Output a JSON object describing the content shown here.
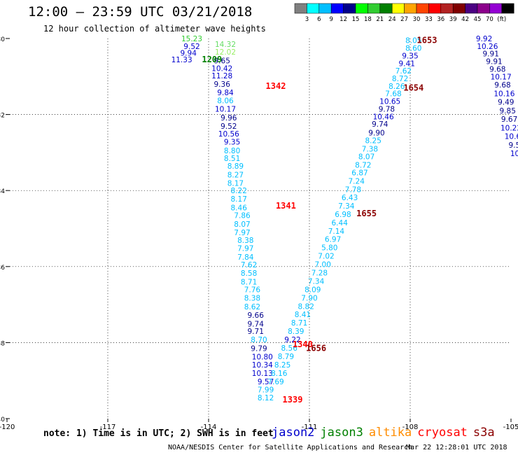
{
  "header": {
    "title": "12:00 – 23:59 UTC 03/21/2018",
    "subtitle": "12 hour collection of altimeter wave heights"
  },
  "colorbar": {
    "colors": [
      "#808080",
      "#00ffff",
      "#00bfff",
      "#0000ff",
      "#00008b",
      "#00ff00",
      "#32cd32",
      "#008000",
      "#ffff00",
      "#ffa500",
      "#ff4500",
      "#ff0000",
      "#b22222",
      "#800000",
      "#4b0082",
      "#8b008b",
      "#9400d3",
      "#000000"
    ],
    "labels": [
      "3",
      "6",
      "9",
      "12",
      "15",
      "18",
      "21",
      "24",
      "27",
      "30",
      "33",
      "36",
      "39",
      "42",
      "45",
      "70",
      "(ft)"
    ]
  },
  "footer": {
    "note": "note: 1) Time is in UTC; 2) SWH is in feet",
    "credit": "NOAA/NESDIS Center for Satellite Applications and Research",
    "timestamp": "Mar 22 12:28:01 UTC 2018"
  },
  "legend": [
    {
      "name": "jason2",
      "color": "#0000cd"
    },
    {
      "name": "jason3",
      "color": "#008000"
    },
    {
      "name": "altika",
      "color": "#ff8c00"
    },
    {
      "name": "cryosat",
      "color": "#ff0000"
    },
    {
      "name": "s3a",
      "color": "#8b0000"
    }
  ],
  "chart_data": {
    "type": "scatter",
    "xlim": [
      -120,
      -105
    ],
    "ylim": [
      -40,
      -30
    ],
    "x_ticks": [
      "-120",
      "-117",
      "-114",
      "-111",
      "-108",
      "-105"
    ],
    "y_ticks": [
      "-30",
      "-32",
      "-34",
      "-36",
      "-38",
      "-40"
    ],
    "series": [
      {
        "name": "jason3",
        "color": "#0000cd",
        "points": [
          {
            "x": -114.5,
            "y": -30.0,
            "v": "15.23",
            "c": "#32cd32"
          },
          {
            "x": -114.5,
            "y": -30.2,
            "v": "9.52",
            "c": "#0000cd"
          },
          {
            "x": -114.6,
            "y": -30.38,
            "v": "9.94",
            "c": "#0000cd"
          },
          {
            "x": -114.8,
            "y": -30.55,
            "v": "11.33",
            "c": "#0000cd"
          }
        ]
      },
      {
        "name": "cryosat",
        "color": "#0000cd",
        "points": [
          {
            "x": -113.5,
            "y": -30.15,
            "v": "14.32",
            "c": "#66dd66"
          },
          {
            "x": -113.5,
            "y": -30.35,
            "v": "12.02",
            "c": "#99ee66"
          },
          {
            "x": -113.6,
            "y": -30.58,
            "v": "9.65",
            "c": "#00008b"
          },
          {
            "x": -113.6,
            "y": -30.78,
            "v": "10.42",
            "c": "#0000cd"
          },
          {
            "x": -113.6,
            "y": -30.98,
            "v": "11.28",
            "c": "#0000cd"
          },
          {
            "x": -113.6,
            "y": -31.2,
            "v": "9.36",
            "c": "#00008b"
          },
          {
            "x": -113.5,
            "y": -31.42,
            "v": "9.84",
            "c": "#0000cd"
          },
          {
            "x": -113.5,
            "y": -31.63,
            "v": "8.06",
            "c": "#00bfff"
          },
          {
            "x": -113.5,
            "y": -31.85,
            "v": "10.17",
            "c": "#0000cd"
          },
          {
            "x": -113.4,
            "y": -32.08,
            "v": "9.96",
            "c": "#00008b"
          },
          {
            "x": -113.4,
            "y": -32.3,
            "v": "9.52",
            "c": "#00008b"
          },
          {
            "x": -113.4,
            "y": -32.5,
            "v": "10.56",
            "c": "#0000cd"
          },
          {
            "x": -113.3,
            "y": -32.72,
            "v": "9.35",
            "c": "#0000cd"
          },
          {
            "x": -113.3,
            "y": -32.95,
            "v": "8.80",
            "c": "#00bfff"
          },
          {
            "x": -113.3,
            "y": -33.15,
            "v": "8.51",
            "c": "#00bfff"
          },
          {
            "x": -113.2,
            "y": -33.35,
            "v": "8.89",
            "c": "#00bfff"
          },
          {
            "x": -113.2,
            "y": -33.58,
            "v": "8.27",
            "c": "#00bfff"
          },
          {
            "x": -113.2,
            "y": -33.8,
            "v": "8.17",
            "c": "#00bfff"
          },
          {
            "x": -113.1,
            "y": -34.0,
            "v": "8.22",
            "c": "#00bfff"
          },
          {
            "x": -113.1,
            "y": -34.22,
            "v": "8.17",
            "c": "#00bfff"
          },
          {
            "x": -113.1,
            "y": -34.45,
            "v": "8.46",
            "c": "#00bfff"
          },
          {
            "x": -113.0,
            "y": -34.65,
            "v": "7.86",
            "c": "#00bfff"
          },
          {
            "x": -113.0,
            "y": -34.88,
            "v": "8.07",
            "c": "#00bfff"
          },
          {
            "x": -113.0,
            "y": -35.1,
            "v": "7.97",
            "c": "#00bfff"
          },
          {
            "x": -112.9,
            "y": -35.3,
            "v": "8.38",
            "c": "#00bfff"
          },
          {
            "x": -112.9,
            "y": -35.52,
            "v": "7.97",
            "c": "#00bfff"
          },
          {
            "x": -112.9,
            "y": -35.75,
            "v": "7.84",
            "c": "#00bfff"
          },
          {
            "x": -112.8,
            "y": -35.95,
            "v": "7.62",
            "c": "#00bfff"
          },
          {
            "x": -112.8,
            "y": -36.17,
            "v": "8.58",
            "c": "#00bfff"
          },
          {
            "x": -112.8,
            "y": -36.4,
            "v": "8.71",
            "c": "#00bfff"
          },
          {
            "x": -112.7,
            "y": -36.6,
            "v": "7.76",
            "c": "#00bfff"
          },
          {
            "x": -112.7,
            "y": -36.82,
            "v": "8.38",
            "c": "#00bfff"
          },
          {
            "x": -112.7,
            "y": -37.05,
            "v": "8.62",
            "c": "#00bfff"
          },
          {
            "x": -112.6,
            "y": -37.27,
            "v": "9.66",
            "c": "#00008b"
          },
          {
            "x": -112.6,
            "y": -37.5,
            "v": "9.74",
            "c": "#00008b"
          },
          {
            "x": -112.6,
            "y": -37.7,
            "v": "9.71",
            "c": "#00008b"
          },
          {
            "x": -112.5,
            "y": -37.92,
            "v": "8.70",
            "c": "#00bfff"
          },
          {
            "x": -112.5,
            "y": -38.15,
            "v": "9.79",
            "c": "#00008b"
          },
          {
            "x": -112.4,
            "y": -38.37,
            "v": "10.80",
            "c": "#0000cd"
          },
          {
            "x": -112.4,
            "y": -38.58,
            "v": "10.34",
            "c": "#0000cd"
          },
          {
            "x": -112.4,
            "y": -38.8,
            "v": "10.13",
            "c": "#0000cd"
          },
          {
            "x": -112.3,
            "y": -39.02,
            "v": "9.57",
            "c": "#0000cd"
          },
          {
            "x": -112.3,
            "y": -39.24,
            "v": "7.99",
            "c": "#00bfff"
          },
          {
            "x": -112.3,
            "y": -39.45,
            "v": "8.12",
            "c": "#00bfff"
          }
        ]
      },
      {
        "name": "s3a",
        "color": "#00bfff",
        "points": [
          {
            "x": -107.9,
            "y": -30.05,
            "v": "8.05",
            "c": "#00bfff"
          },
          {
            "x": -107.9,
            "y": -30.25,
            "v": "8.60",
            "c": "#00bfff"
          },
          {
            "x": -108.0,
            "y": -30.45,
            "v": "9.35",
            "c": "#0000cd"
          },
          {
            "x": -108.1,
            "y": -30.65,
            "v": "9.41",
            "c": "#0000cd"
          },
          {
            "x": -108.2,
            "y": -30.85,
            "v": "7.62",
            "c": "#00bfff"
          },
          {
            "x": -108.3,
            "y": -31.05,
            "v": "8.72",
            "c": "#00bfff"
          },
          {
            "x": -108.4,
            "y": -31.25,
            "v": "8.26",
            "c": "#00bfff"
          },
          {
            "x": -108.5,
            "y": -31.45,
            "v": "7.68",
            "c": "#00bfff"
          },
          {
            "x": -108.6,
            "y": -31.65,
            "v": "10.65",
            "c": "#0000cd"
          },
          {
            "x": -108.7,
            "y": -31.85,
            "v": "9.78",
            "c": "#00008b"
          },
          {
            "x": -108.8,
            "y": -32.05,
            "v": "10.46",
            "c": "#0000cd"
          },
          {
            "x": -108.9,
            "y": -32.25,
            "v": "9.74",
            "c": "#00008b"
          },
          {
            "x": -109.0,
            "y": -32.48,
            "v": "9.90",
            "c": "#00008b"
          },
          {
            "x": -109.1,
            "y": -32.68,
            "v": "8.25",
            "c": "#00bfff"
          },
          {
            "x": -109.2,
            "y": -32.9,
            "v": "7.38",
            "c": "#00bfff"
          },
          {
            "x": -109.3,
            "y": -33.1,
            "v": "8.07",
            "c": "#00bfff"
          },
          {
            "x": -109.4,
            "y": -33.32,
            "v": "8.72",
            "c": "#00bfff"
          },
          {
            "x": -109.5,
            "y": -33.53,
            "v": "6.87",
            "c": "#00bfff"
          },
          {
            "x": -109.6,
            "y": -33.75,
            "v": "7.24",
            "c": "#00bfff"
          },
          {
            "x": -109.7,
            "y": -33.97,
            "v": "7.78",
            "c": "#00bfff"
          },
          {
            "x": -109.8,
            "y": -34.18,
            "v": "6.43",
            "c": "#00bfff"
          },
          {
            "x": -109.9,
            "y": -34.4,
            "v": "7.34",
            "c": "#00bfff"
          },
          {
            "x": -110.0,
            "y": -34.62,
            "v": "6.98",
            "c": "#00bfff"
          },
          {
            "x": -110.1,
            "y": -34.84,
            "v": "6.44",
            "c": "#00bfff"
          },
          {
            "x": -110.2,
            "y": -35.06,
            "v": "7.14",
            "c": "#00bfff"
          },
          {
            "x": -110.3,
            "y": -35.28,
            "v": "6.97",
            "c": "#00bfff"
          },
          {
            "x": -110.4,
            "y": -35.5,
            "v": "5.80",
            "c": "#00bfff"
          },
          {
            "x": -110.5,
            "y": -35.72,
            "v": "7.02",
            "c": "#00bfff"
          },
          {
            "x": -110.6,
            "y": -35.94,
            "v": "7.00",
            "c": "#00bfff"
          },
          {
            "x": -110.7,
            "y": -36.16,
            "v": "7.28",
            "c": "#00bfff"
          },
          {
            "x": -110.8,
            "y": -36.38,
            "v": "7.34",
            "c": "#00bfff"
          },
          {
            "x": -110.9,
            "y": -36.6,
            "v": "8.09",
            "c": "#00bfff"
          },
          {
            "x": -111.0,
            "y": -36.82,
            "v": "7.90",
            "c": "#00bfff"
          },
          {
            "x": -111.1,
            "y": -37.04,
            "v": "8.82",
            "c": "#00bfff"
          },
          {
            "x": -111.2,
            "y": -37.26,
            "v": "8.41",
            "c": "#00bfff"
          },
          {
            "x": -111.3,
            "y": -37.48,
            "v": "8.71",
            "c": "#00bfff"
          },
          {
            "x": -111.4,
            "y": -37.7,
            "v": "8.39",
            "c": "#00bfff"
          },
          {
            "x": -111.5,
            "y": -37.92,
            "v": "9.22",
            "c": "#0000cd"
          },
          {
            "x": -111.6,
            "y": -38.14,
            "v": "8.56",
            "c": "#00bfff"
          },
          {
            "x": -111.7,
            "y": -38.36,
            "v": "8.79",
            "c": "#00bfff"
          },
          {
            "x": -111.8,
            "y": -38.58,
            "v": "8.25",
            "c": "#00bfff"
          },
          {
            "x": -111.9,
            "y": -38.8,
            "v": "8.16",
            "c": "#00bfff"
          },
          {
            "x": -112.0,
            "y": -39.02,
            "v": "7.69",
            "c": "#00bfff"
          }
        ]
      },
      {
        "name": "jason2",
        "color": "#0000cd",
        "points": [
          {
            "x": -105.8,
            "y": -30.0,
            "v": "9.92",
            "c": "#0000cd"
          },
          {
            "x": -105.7,
            "y": -30.2,
            "v": "10.26",
            "c": "#0000cd"
          },
          {
            "x": -105.6,
            "y": -30.4,
            "v": "9.91",
            "c": "#00008b"
          },
          {
            "x": -105.5,
            "y": -30.6,
            "v": "9.91",
            "c": "#00008b"
          },
          {
            "x": -105.4,
            "y": -30.8,
            "v": "9.68",
            "c": "#00008b"
          },
          {
            "x": -105.3,
            "y": -31.0,
            "v": "10.17",
            "c": "#0000cd"
          },
          {
            "x": -105.25,
            "y": -31.22,
            "v": "9.68",
            "c": "#00008b"
          },
          {
            "x": -105.2,
            "y": -31.45,
            "v": "10.16",
            "c": "#0000cd"
          },
          {
            "x": -105.15,
            "y": -31.67,
            "v": "9.49",
            "c": "#00008b"
          },
          {
            "x": -105.1,
            "y": -31.9,
            "v": "9.85",
            "c": "#00008b"
          },
          {
            "x": -105.05,
            "y": -32.12,
            "v": "9.67",
            "c": "#00008b"
          },
          {
            "x": -105.0,
            "y": -32.35,
            "v": "10.22",
            "c": "#0000cd"
          },
          {
            "x": -104.95,
            "y": -32.57,
            "v": "10.6",
            "c": "#0000cd"
          },
          {
            "x": -104.9,
            "y": -32.8,
            "v": "9.5",
            "c": "#00008b"
          },
          {
            "x": -104.85,
            "y": -33.02,
            "v": "10.",
            "c": "#0000cd"
          },
          {
            "x": -104.8,
            "y": -33.25,
            "v": "10",
            "c": "#0000cd"
          },
          {
            "x": -104.75,
            "y": -33.48,
            "v": "10",
            "c": "#0000cd"
          },
          {
            "x": -104.7,
            "y": -33.7,
            "v": "1",
            "c": "#0000cd"
          }
        ]
      }
    ],
    "time_labels": [
      {
        "x": -113.9,
        "y": -30.55,
        "v": "1209",
        "c": "#008000"
      },
      {
        "x": -112.0,
        "y": -31.25,
        "v": "1342",
        "c": "#ff0000"
      },
      {
        "x": -111.7,
        "y": -34.4,
        "v": "1341",
        "c": "#ff0000"
      },
      {
        "x": -111.2,
        "y": -38.05,
        "v": "1340",
        "c": "#ff0000"
      },
      {
        "x": -111.5,
        "y": -39.5,
        "v": "1339",
        "c": "#ff0000"
      },
      {
        "x": -107.5,
        "y": -30.05,
        "v": "1653",
        "c": "#8b0000"
      },
      {
        "x": -107.9,
        "y": -31.3,
        "v": "1654",
        "c": "#8b0000"
      },
      {
        "x": -109.3,
        "y": -34.6,
        "v": "1655",
        "c": "#8b0000"
      },
      {
        "x": -110.8,
        "y": -38.15,
        "v": "1656",
        "c": "#8b0000"
      }
    ]
  }
}
